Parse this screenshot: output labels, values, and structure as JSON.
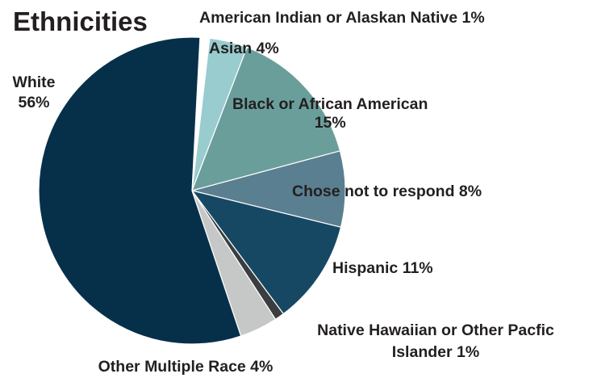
{
  "chart_data": {
    "type": "pie",
    "title": "Ethnicities",
    "start_angle_deg": -87,
    "direction": "clockwise",
    "slices": [
      {
        "label": "American Indian or Alaskan Native 1%",
        "lines": [
          "American Indian or Alaskan Native 1%"
        ],
        "value": 1,
        "color": "#ffffff"
      },
      {
        "label": "Asian 4%",
        "lines": [
          "Asian 4%"
        ],
        "value": 4,
        "color": "#98cccf"
      },
      {
        "label": "Black or African American 15%",
        "lines": [
          "Black or African American",
          "15%"
        ],
        "value": 15,
        "color": "#6a9e9b"
      },
      {
        "label": "Chose not to respond 8%",
        "lines": [
          "Chose not to respond 8%"
        ],
        "value": 8,
        "color": "#5a7f90"
      },
      {
        "label": "Hispanic 11%",
        "lines": [
          "Hispanic 11%"
        ],
        "value": 11,
        "color": "#174863"
      },
      {
        "label": "Native Hawaiian or Other Pacfic Islander 1%",
        "lines": [
          "Native Hawaiian or Other Pacfic",
          "Islander 1%"
        ],
        "value": 1,
        "color": "#3a3e40"
      },
      {
        "label": "Other Multiple Race 4%",
        "lines": [
          "Other Multiple Race 4%"
        ],
        "value": 4,
        "color": "#c6c8c8"
      },
      {
        "label": "White 56%",
        "lines": [
          "White",
          "56%"
        ],
        "value": 56,
        "color": "#06304a"
      }
    ]
  }
}
